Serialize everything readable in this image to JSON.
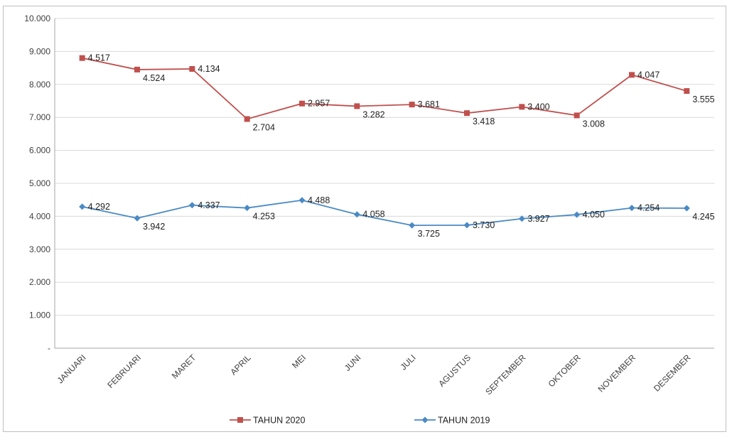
{
  "chart_data": {
    "type": "line",
    "categories": [
      "JANUARI",
      "FEBRUARI",
      "MARET",
      "APRIL",
      "MEI",
      "JUNI",
      "JULI",
      "AGUSTUS",
      "SEPTEMBER",
      "OKTOBER",
      "NOVEMBER",
      "DESEMBER"
    ],
    "y_ticks": [
      "-",
      "1.000",
      "2.000",
      "3.000",
      "4.000",
      "5.000",
      "6.000",
      "7.000",
      "8.000",
      "9.000",
      "10.000"
    ],
    "ylim": [
      0,
      10000
    ],
    "grid": true,
    "legend_position": "bottom",
    "series": [
      {
        "name": "TAHUN 2020",
        "color": "#c0504d",
        "marker": "square",
        "values": [
          8800,
          8450,
          8470,
          6950,
          7420,
          7340,
          7390,
          7130,
          7320,
          7060,
          8290,
          7800
        ],
        "labels": [
          "4.517",
          "4.524",
          "4.134",
          "2.704",
          "2.957",
          "3.282",
          "3.681",
          "3.418",
          "3.400",
          "3.008",
          "4.047",
          "3.555"
        ]
      },
      {
        "name": "TAHUN 2019",
        "color": "#4a8ac4",
        "marker": "diamond",
        "values": [
          4292,
          3942,
          4337,
          4253,
          4488,
          4058,
          3725,
          3730,
          3927,
          4050,
          4254,
          4245
        ],
        "labels": [
          "4.292",
          "3.942",
          "4.337",
          "4.253",
          "4.488",
          "4.058",
          "3.725",
          "3.730",
          "3.927",
          "4.050",
          "4.254",
          "4.245"
        ]
      }
    ]
  }
}
